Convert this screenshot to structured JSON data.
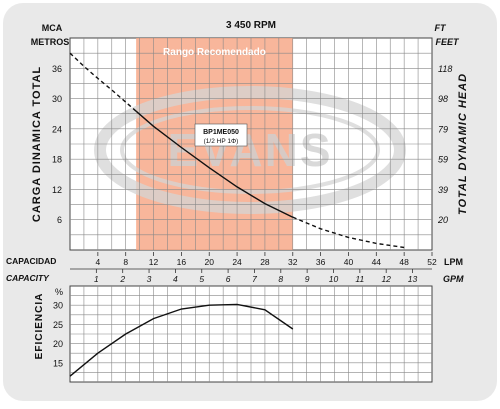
{
  "chart_data": [
    {
      "type": "line",
      "title": "3 450 RPM",
      "curve_label": "BP1ME050",
      "curve_sublabel": "(1/2 HP 1Φ)",
      "watermark": "EVANS",
      "recommended_range_label": "Rango Recomendado",
      "left_axis": {
        "label": "CARGA DINAMICA TOTAL",
        "unit_top": "MCA",
        "unit_bottom": "METROS",
        "ticks": [
          6,
          12,
          18,
          24,
          30,
          36
        ],
        "range": [
          0,
          42
        ]
      },
      "right_axis": {
        "label": "TOTAL DYNAMIC HEAD",
        "unit_top": "FT",
        "unit_bottom": "FEET",
        "ticks": [
          "20",
          "39",
          "59",
          "79",
          "98",
          "118"
        ]
      },
      "x_axis_lpm": {
        "label": "CAPACIDAD",
        "unit": "LPM",
        "ticks": [
          4,
          8,
          12,
          16,
          20,
          24,
          28,
          32,
          36,
          40,
          44,
          48,
          52
        ],
        "range": [
          0,
          52
        ]
      },
      "x_axis_gpm": {
        "label": "CAPACITY",
        "unit": "GPM",
        "ticks": [
          1,
          2,
          3,
          4,
          5,
          6,
          7,
          8,
          9,
          10,
          11,
          12,
          13
        ]
      },
      "recommended_range_lpm": [
        9.5,
        32
      ],
      "series": [
        {
          "x": [
            9.5,
            12,
            16,
            20,
            24,
            28,
            32
          ],
          "y": [
            27.5,
            24.5,
            20.3,
            16.3,
            12.5,
            9.2,
            6.5
          ],
          "style": "solid"
        },
        {
          "x": [
            0,
            2,
            4,
            6,
            8,
            9.5
          ],
          "y": [
            39,
            36.4,
            34,
            31.7,
            29.3,
            27.5
          ],
          "style": "dashed"
        },
        {
          "x": [
            32,
            36,
            40,
            44,
            48
          ],
          "y": [
            6.5,
            4.2,
            2.5,
            1.3,
            0.5
          ],
          "style": "dashed"
        }
      ]
    },
    {
      "type": "line",
      "y_axis": {
        "label": "EFICIENCIA",
        "unit": "%",
        "ticks": [
          15,
          20,
          25,
          30
        ],
        "range": [
          10,
          35
        ]
      },
      "series": [
        {
          "x": [
            0,
            4,
            8,
            12,
            16,
            20,
            24,
            28,
            32
          ],
          "y": [
            11.5,
            17.5,
            22.5,
            26.5,
            29,
            30,
            30.2,
            28.8,
            23.8
          ],
          "style": "solid"
        }
      ]
    }
  ]
}
